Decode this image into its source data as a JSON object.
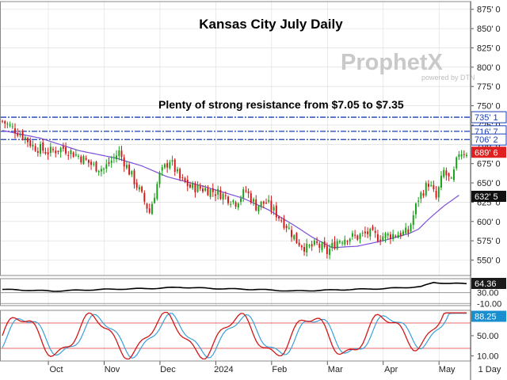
{
  "chart_data": {
    "type": "candlestick",
    "title": "Kansas City July Daily",
    "annotation": "Plenty of strong resistance from $7.05 to $7.35",
    "logo": {
      "main": "ProphetX",
      "sub": "powered by DTN"
    },
    "timeframe_label": "1 Day",
    "y_axis": {
      "min": 530,
      "max": 885,
      "ticks": [
        "875' 0",
        "850' 0",
        "825' 0",
        "800' 0",
        "775' 0",
        "750' 0",
        "725' 0",
        "700' 0",
        "675' 0",
        "650' 0",
        "625' 0",
        "600' 0",
        "575' 0",
        "550' 0"
      ],
      "tick_values": [
        875,
        850,
        825,
        800,
        775,
        750,
        725,
        700,
        675,
        650,
        625,
        600,
        575,
        550
      ]
    },
    "x_axis": {
      "months": [
        "Oct",
        "Nov",
        "Dec",
        "2024",
        "Feb",
        "Mar",
        "Apr",
        "May"
      ],
      "month_index": [
        20,
        42,
        64,
        86,
        108,
        130,
        152,
        174
      ]
    },
    "resistance_lines": [
      {
        "label": "735' 1",
        "value": 735.125,
        "color": "#1a3fb5"
      },
      {
        "label": "716' 7",
        "value": 716.875,
        "color": "#1a3fb5"
      },
      {
        "label": "706' 2",
        "value": 706.25,
        "color": "#1a3fb5"
      }
    ],
    "price_tags": [
      {
        "label": "689' 6",
        "value": 689.75,
        "bg": "#e02020",
        "fg": "#ffffff"
      },
      {
        "label": "632' 5",
        "value": 632.625,
        "bg": "#111111",
        "fg": "#ffffff"
      }
    ],
    "close_anchors": [
      [
        0,
        730
      ],
      [
        8,
        712
      ],
      [
        12,
        698
      ],
      [
        18,
        690
      ],
      [
        24,
        695
      ],
      [
        30,
        685
      ],
      [
        36,
        672
      ],
      [
        40,
        668
      ],
      [
        46,
        690
      ],
      [
        50,
        665
      ],
      [
        54,
        640
      ],
      [
        58,
        612
      ],
      [
        62,
        660
      ],
      [
        66,
        680
      ],
      [
        70,
        655
      ],
      [
        74,
        645
      ],
      [
        80,
        642
      ],
      [
        86,
        636
      ],
      [
        92,
        625
      ],
      [
        96,
        640
      ],
      [
        100,
        620
      ],
      [
        104,
        625
      ],
      [
        108,
        610
      ],
      [
        112,
        595
      ],
      [
        116,
        575
      ],
      [
        120,
        565
      ],
      [
        124,
        570
      ],
      [
        128,
        560
      ],
      [
        132,
        575
      ],
      [
        136,
        580
      ],
      [
        140,
        580
      ],
      [
        144,
        585
      ],
      [
        148,
        580
      ],
      [
        152,
        582
      ],
      [
        156,
        584
      ],
      [
        160,
        586
      ],
      [
        164,
        630
      ],
      [
        168,
        650
      ],
      [
        171,
        630
      ],
      [
        174,
        665
      ],
      [
        177,
        650
      ],
      [
        180,
        690
      ]
    ],
    "ma_anchors": [
      [
        0,
        718
      ],
      [
        15,
        708
      ],
      [
        30,
        692
      ],
      [
        45,
        682
      ],
      [
        55,
        672
      ],
      [
        65,
        658
      ],
      [
        80,
        645
      ],
      [
        95,
        630
      ],
      [
        105,
        615
      ],
      [
        115,
        595
      ],
      [
        122,
        580
      ],
      [
        130,
        566
      ],
      [
        140,
        568
      ],
      [
        150,
        575
      ],
      [
        160,
        584
      ],
      [
        164,
        590
      ],
      [
        168,
        603
      ],
      [
        174,
        620
      ],
      [
        180,
        634
      ]
    ],
    "indicator1": {
      "label": "64.36",
      "ticks": [
        "30.00",
        "-10.00"
      ],
      "tick_values": [
        30,
        -10
      ],
      "range": [
        -18,
        82
      ],
      "anchors": [
        [
          0,
          42
        ],
        [
          20,
          36
        ],
        [
          40,
          42
        ],
        [
          60,
          46
        ],
        [
          70,
          50
        ],
        [
          85,
          45
        ],
        [
          100,
          42
        ],
        [
          115,
          36
        ],
        [
          130,
          40
        ],
        [
          150,
          45
        ],
        [
          165,
          52
        ],
        [
          170,
          68
        ],
        [
          176,
          64
        ],
        [
          183,
          64
        ]
      ]
    },
    "indicator2": {
      "label": "88.25",
      "ticks": [
        "50.00",
        "10.00"
      ],
      "tick_values": [
        50,
        10
      ],
      "range": [
        0,
        100
      ],
      "upper_band": 75,
      "lower_band": 25
    }
  }
}
